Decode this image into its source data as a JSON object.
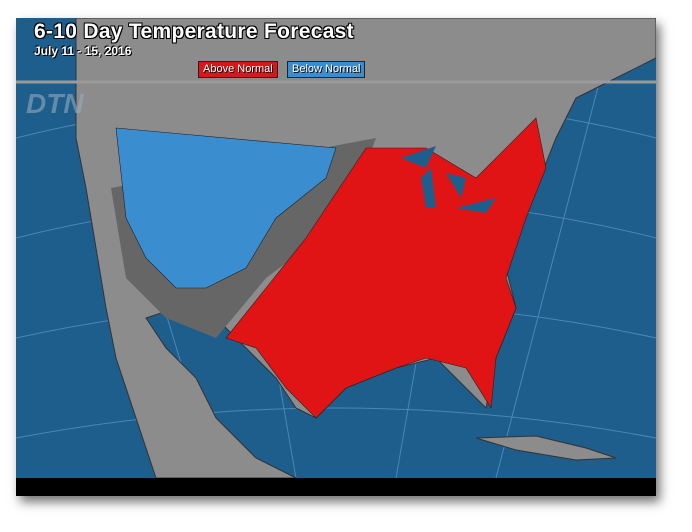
{
  "title": "6-10 Day Temperature Forecast",
  "date_range": "July 11 - 15, 2016",
  "legend": [
    {
      "label": "Above Normal",
      "color": "#d81818"
    },
    {
      "label": "Below Normal",
      "color": "#3a8ed0"
    }
  ],
  "watermark": "DTN",
  "colors": {
    "ocean": "#1d5e8c",
    "land": "#8c8c8c",
    "near_normal": "#666666",
    "above": "#e01414",
    "below": "#3a8ed0"
  }
}
